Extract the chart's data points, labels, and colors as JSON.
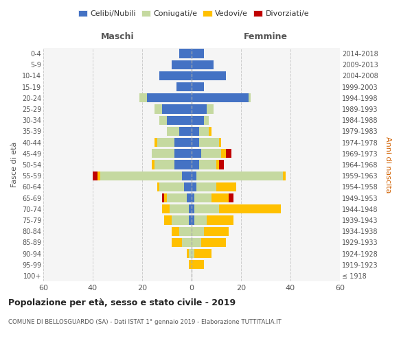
{
  "age_groups": [
    "100+",
    "95-99",
    "90-94",
    "85-89",
    "80-84",
    "75-79",
    "70-74",
    "65-69",
    "60-64",
    "55-59",
    "50-54",
    "45-49",
    "40-44",
    "35-39",
    "30-34",
    "25-29",
    "20-24",
    "15-19",
    "10-14",
    "5-9",
    "0-4"
  ],
  "birth_years": [
    "≤ 1918",
    "1919-1923",
    "1924-1928",
    "1929-1933",
    "1934-1938",
    "1939-1943",
    "1944-1948",
    "1949-1953",
    "1954-1958",
    "1959-1963",
    "1964-1968",
    "1969-1973",
    "1974-1978",
    "1979-1983",
    "1984-1988",
    "1989-1993",
    "1994-1998",
    "1999-2003",
    "2004-2008",
    "2009-2013",
    "2014-2018"
  ],
  "male_celibi": [
    0,
    0,
    0,
    0,
    0,
    1,
    1,
    2,
    3,
    4,
    7,
    7,
    7,
    5,
    10,
    12,
    18,
    6,
    13,
    8,
    5
  ],
  "male_coniugati": [
    0,
    0,
    1,
    4,
    5,
    7,
    8,
    8,
    10,
    33,
    8,
    9,
    7,
    5,
    3,
    3,
    3,
    0,
    0,
    0,
    0
  ],
  "male_vedovi": [
    0,
    1,
    1,
    4,
    3,
    3,
    3,
    1,
    1,
    1,
    1,
    0,
    1,
    0,
    0,
    0,
    0,
    0,
    0,
    0,
    0
  ],
  "male_divorziati": [
    0,
    0,
    0,
    0,
    0,
    0,
    0,
    1,
    0,
    2,
    0,
    0,
    0,
    0,
    0,
    0,
    0,
    0,
    0,
    0,
    0
  ],
  "female_nubili": [
    0,
    0,
    0,
    0,
    0,
    1,
    1,
    1,
    2,
    2,
    3,
    4,
    3,
    3,
    5,
    6,
    23,
    5,
    14,
    9,
    5
  ],
  "female_coniugate": [
    0,
    0,
    1,
    4,
    5,
    5,
    10,
    7,
    8,
    35,
    7,
    8,
    8,
    4,
    2,
    3,
    1,
    0,
    0,
    0,
    0
  ],
  "female_vedove": [
    0,
    5,
    7,
    10,
    10,
    11,
    25,
    7,
    8,
    1,
    1,
    2,
    1,
    1,
    0,
    0,
    0,
    0,
    0,
    0,
    0
  ],
  "female_divorziate": [
    0,
    0,
    0,
    0,
    0,
    0,
    0,
    2,
    0,
    0,
    2,
    2,
    0,
    0,
    0,
    0,
    0,
    0,
    0,
    0,
    0
  ],
  "color_celibi": "#4472c4",
  "color_coniugati": "#c5d9a0",
  "color_vedovi": "#ffc000",
  "color_divorziati": "#c00000",
  "title": "Popolazione per età, sesso e stato civile - 2019",
  "subtitle": "COMUNE DI BELLOSGUARDO (SA) - Dati ISTAT 1° gennaio 2019 - Elaborazione TUTTITALIA.IT",
  "label_maschi": "Maschi",
  "label_femmine": "Femmine",
  "ylabel_left": "Fasce di età",
  "ylabel_right": "Anni di nascita",
  "legend_labels": [
    "Celibi/Nubili",
    "Coniugati/e",
    "Vedovi/e",
    "Divorziati/e"
  ],
  "xlim": 60,
  "bg_color": "#f5f5f5"
}
